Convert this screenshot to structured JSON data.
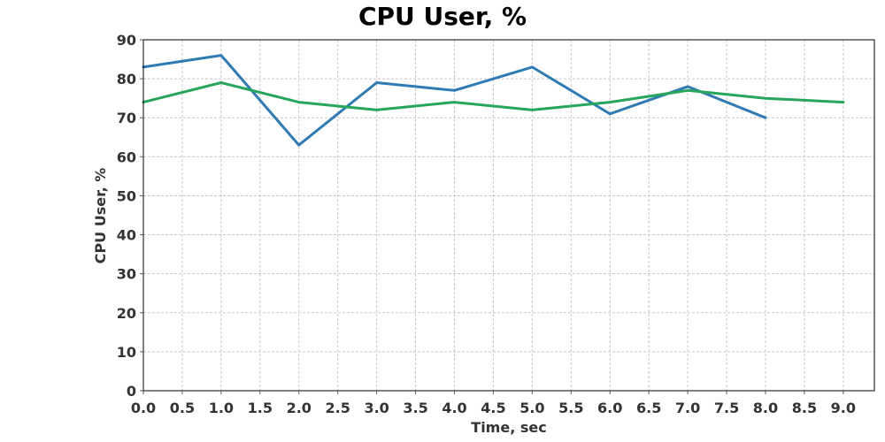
{
  "chart_data": {
    "type": "line",
    "title": "CPU User, %",
    "xlabel": "Time, sec",
    "ylabel": "CPU User, %",
    "xlim": [
      0,
      9.4
    ],
    "ylim": [
      0,
      90
    ],
    "x_ticks": [
      0,
      0.5,
      1,
      1.5,
      2,
      2.5,
      3,
      3.5,
      4,
      4.5,
      5,
      5.5,
      6,
      6.5,
      7,
      7.5,
      8,
      8.5,
      9
    ],
    "x_tick_labels": [
      "0.0",
      "0.5",
      "1.0",
      "1.5",
      "2.0",
      "2.5",
      "3.0",
      "3.5",
      "4.0",
      "4.5",
      "5.0",
      "5.5",
      "6.0",
      "6.5",
      "7.0",
      "7.5",
      "8.0",
      "8.5",
      "9.0"
    ],
    "y_ticks": [
      0,
      10,
      20,
      30,
      40,
      50,
      60,
      70,
      80,
      90
    ],
    "y_tick_labels": [
      "0",
      "10",
      "20",
      "30",
      "40",
      "50",
      "60",
      "70",
      "80",
      "90"
    ],
    "grid": true,
    "legend": "none",
    "series": [
      {
        "color": "#2e7bb4",
        "x": [
          0,
          1,
          2,
          3,
          4,
          5,
          6,
          7,
          8
        ],
        "y": [
          83,
          86,
          63,
          79,
          77,
          83,
          71,
          78,
          70
        ]
      },
      {
        "color": "#27a55a",
        "x": [
          0,
          1,
          2,
          3,
          4,
          5,
          6,
          7,
          8,
          9
        ],
        "y": [
          74,
          79,
          74,
          72,
          74,
          72,
          74,
          77,
          75,
          74
        ]
      }
    ]
  }
}
